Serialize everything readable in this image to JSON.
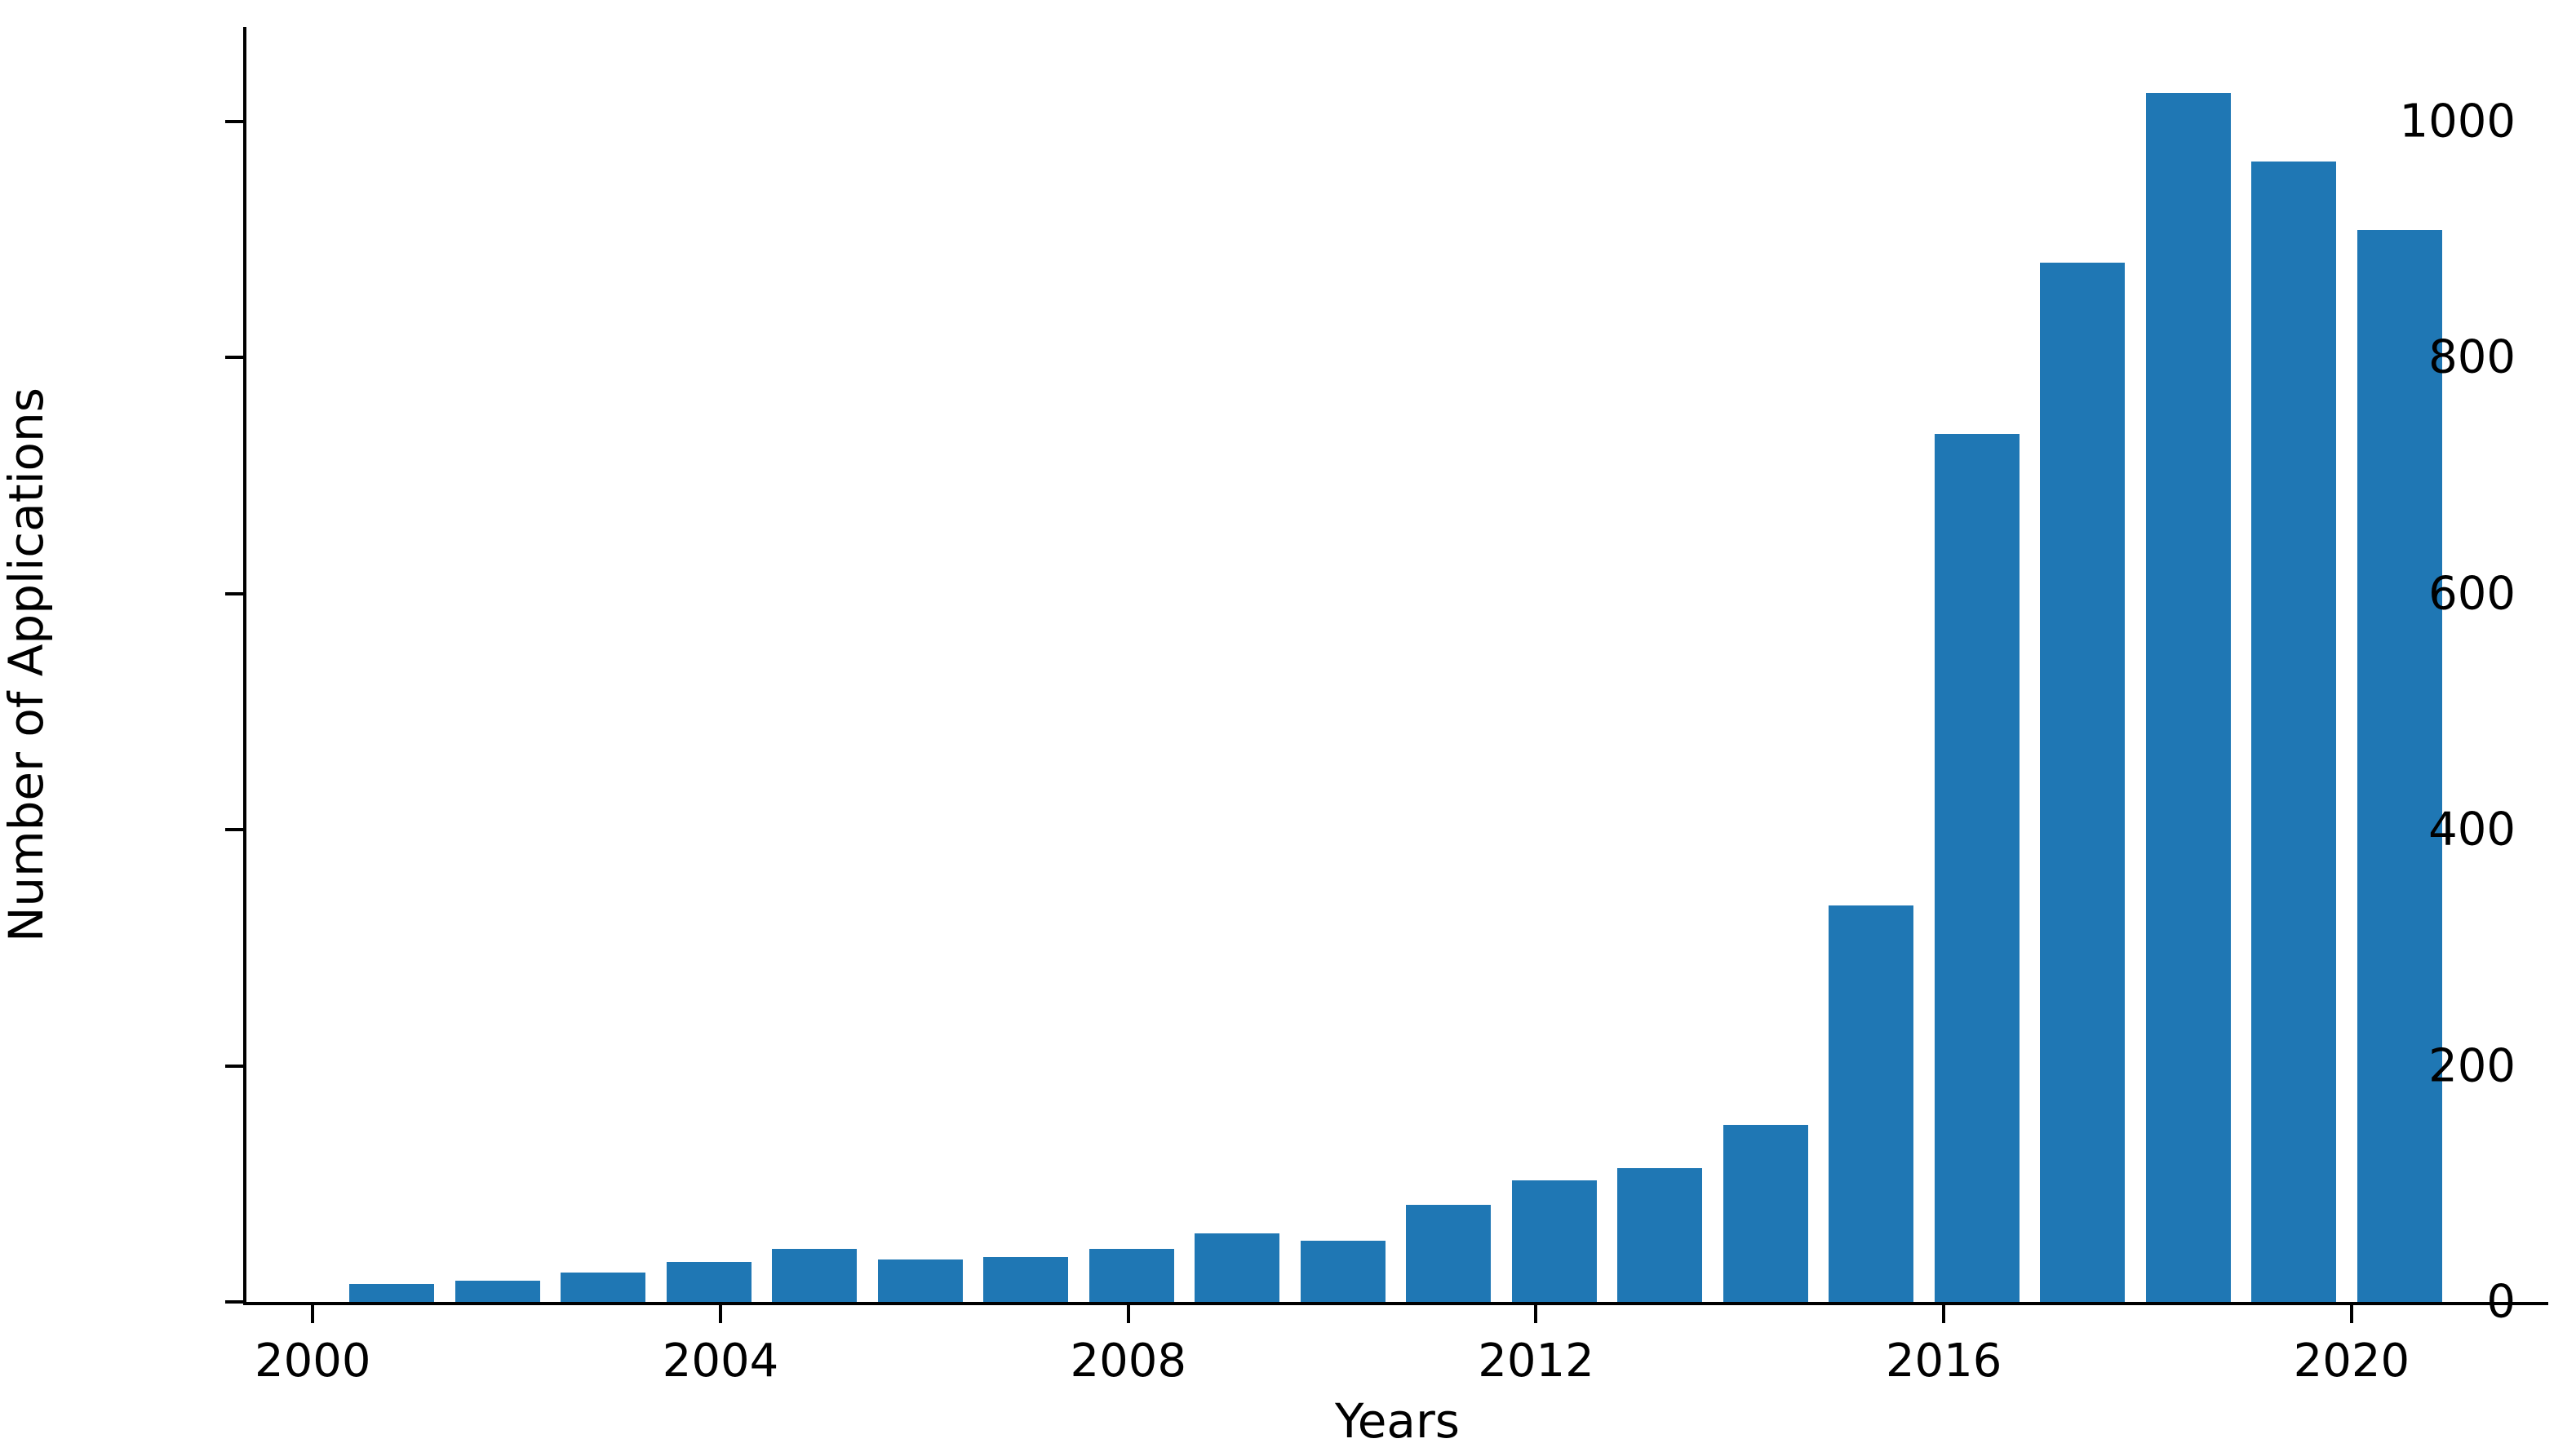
{
  "figure": {
    "background": "#ffffff"
  },
  "chart_data": {
    "type": "bar",
    "title": "",
    "xlabel": "Years",
    "ylabel": "Number of Applications",
    "x": [
      2001,
      2002,
      2003,
      2004,
      2005,
      2006,
      2007,
      2008,
      2009,
      2010,
      2011,
      2012,
      2013,
      2014,
      2015,
      2016,
      2017,
      2018,
      2019,
      2020
    ],
    "values": [
      15,
      18,
      25,
      34,
      45,
      36,
      38,
      45,
      58,
      52,
      82,
      103,
      113,
      150,
      336,
      735,
      880,
      1024,
      966,
      908
    ],
    "series_name": "Number of Applications",
    "bar_color": "#1f77b4",
    "axis_color": "#000000",
    "text_color": "#000000",
    "xticks": {
      "values": [
        2000,
        2004,
        2008,
        2012,
        2016,
        2020
      ],
      "labels": [
        "2000",
        "2004",
        "2008",
        "2012",
        "2016",
        "2020"
      ]
    },
    "yticks": {
      "values": [
        0,
        200,
        400,
        600,
        800,
        1000
      ],
      "labels": [
        "0",
        "200",
        "400",
        "600",
        "800",
        "1000"
      ]
    },
    "xlim": [
      1999.35,
      2021.93
    ],
    "ylim": [
      0,
      1080
    ],
    "grid": false,
    "legend": null
  }
}
